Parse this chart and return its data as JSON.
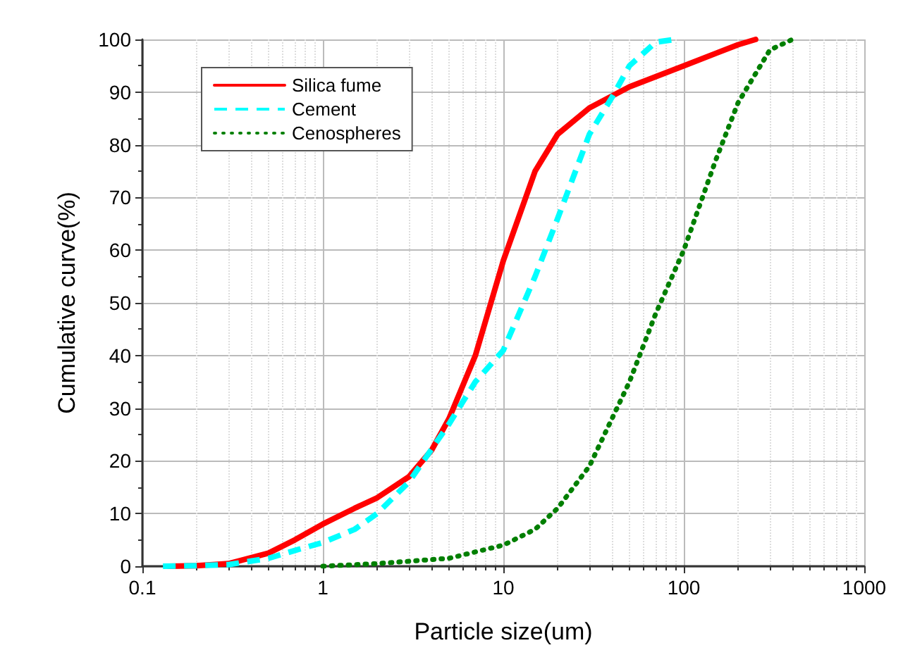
{
  "chart_data": {
    "type": "line",
    "xlabel": "Particle size(um)",
    "ylabel": "Cumulative curve(%)",
    "log": "x",
    "xlim": [
      0.1,
      1000
    ],
    "xticks": [
      0.1,
      1,
      10,
      100,
      1000
    ],
    "ylim": [
      0,
      100
    ],
    "yticks": [
      0,
      10,
      20,
      30,
      40,
      50,
      60,
      70,
      80,
      90,
      100
    ],
    "grid": true,
    "legend": "top left",
    "marker": "none",
    "series": [
      {
        "name": "Silica fume",
        "color": "#ff0000",
        "line_style": "solid",
        "x": [
          0.14,
          0.2,
          0.3,
          0.5,
          0.7,
          1,
          1.5,
          2,
          3,
          4,
          5,
          7,
          10,
          15,
          20,
          30,
          50,
          100,
          200,
          250
        ],
        "values": [
          0,
          0.1,
          0.5,
          2.5,
          5,
          8,
          11,
          13,
          17,
          22,
          28,
          40,
          58,
          75,
          82,
          87,
          91,
          95,
          99,
          100
        ]
      },
      {
        "name": "Cement",
        "color": "#00ffff",
        "line_style": "dashed",
        "x": [
          0.13,
          0.2,
          0.3,
          0.5,
          0.7,
          1,
          1.5,
          2,
          3,
          5,
          7,
          10,
          15,
          20,
          30,
          40,
          50,
          70,
          90
        ],
        "values": [
          0,
          0.1,
          0.3,
          1.5,
          3,
          4.5,
          7,
          10,
          16,
          27,
          35,
          41,
          55,
          66,
          82,
          89,
          95,
          99.5,
          100
        ]
      },
      {
        "name": "Cenospheres",
        "color": "#007f00",
        "line_style": "dotted",
        "x": [
          1,
          2,
          5,
          10,
          15,
          20,
          30,
          50,
          70,
          100,
          150,
          200,
          300,
          400
        ],
        "values": [
          0,
          0.5,
          1.5,
          4,
          7,
          11,
          19,
          35,
          48,
          60,
          77,
          88,
          98,
          100
        ]
      }
    ]
  }
}
